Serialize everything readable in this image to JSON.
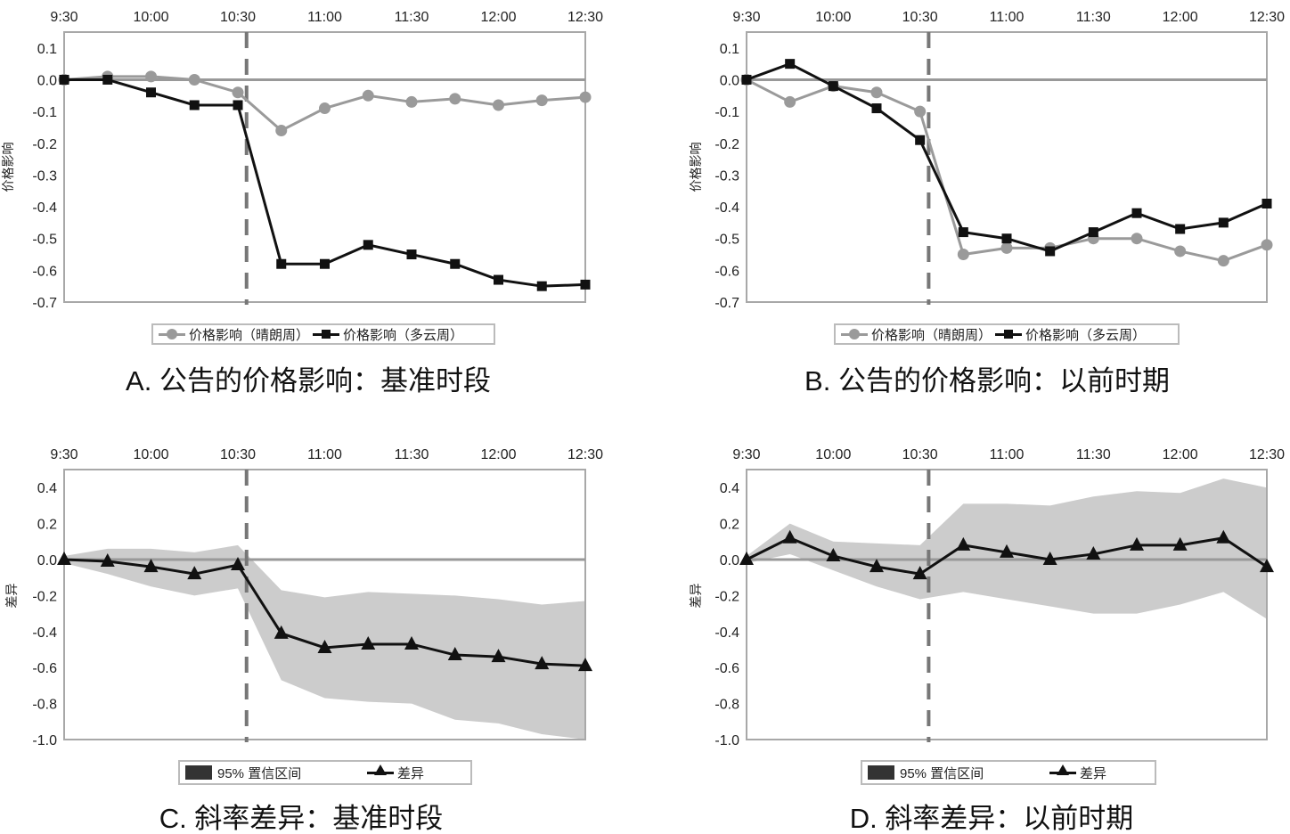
{
  "colors": {
    "sunny": "#9a9a9a",
    "cloudy": "#111111",
    "ci": "#cccccc",
    "diff": "#111111",
    "frame": "#a8a8a8",
    "event_line": "#777777"
  },
  "chart_data": [
    {
      "id": "A",
      "type": "line",
      "title": "A. 公告的价格影响：基准时段",
      "ylabel": "价格影响",
      "x": [
        "9:30",
        "9:45",
        "10:00",
        "10:15",
        "10:30",
        "10:45",
        "11:00",
        "11:15",
        "11:30",
        "11:45",
        "12:00",
        "12:15",
        "12:30"
      ],
      "xticks": [
        "9:30",
        "10:00",
        "10:30",
        "11:00",
        "11:30",
        "12:00",
        "12:30"
      ],
      "yticks": [
        "0.1",
        "0.0",
        "-0.1",
        "-0.2",
        "-0.3",
        "-0.4",
        "-0.5",
        "-0.6",
        "-0.7"
      ],
      "ylim": [
        -0.7,
        0.15
      ],
      "event_time": "10:33",
      "series": [
        {
          "name": "价格影响（晴朗周）",
          "marker": "circle",
          "values": [
            0,
            0.01,
            0.01,
            0.0,
            -0.04,
            -0.16,
            -0.09,
            -0.05,
            -0.07,
            -0.06,
            -0.08,
            -0.065,
            -0.055
          ]
        },
        {
          "name": "价格影响（多云周）",
          "marker": "square",
          "values": [
            0,
            0,
            -0.04,
            -0.08,
            -0.08,
            -0.58,
            -0.58,
            -0.52,
            -0.55,
            -0.58,
            -0.63,
            -0.65,
            -0.645
          ]
        }
      ]
    },
    {
      "id": "B",
      "type": "line",
      "title": "B. 公告的价格影响：以前时期",
      "ylabel": "价格影响",
      "x": [
        "9:30",
        "9:45",
        "10:00",
        "10:15",
        "10:30",
        "10:45",
        "11:00",
        "11:15",
        "11:30",
        "11:45",
        "12:00",
        "12:15",
        "12:30"
      ],
      "xticks": [
        "9:30",
        "10:00",
        "10:30",
        "11:00",
        "11:30",
        "12:00",
        "12:30"
      ],
      "yticks": [
        "0.1",
        "0.0",
        "-0.1",
        "-0.2",
        "-0.3",
        "-0.4",
        "-0.5",
        "-0.6",
        "-0.7"
      ],
      "ylim": [
        -0.7,
        0.15
      ],
      "event_time": "10:33",
      "series": [
        {
          "name": "价格影响（晴朗周）",
          "marker": "circle",
          "values": [
            0,
            -0.07,
            -0.02,
            -0.04,
            -0.1,
            -0.55,
            -0.53,
            -0.53,
            -0.5,
            -0.5,
            -0.54,
            -0.57,
            -0.52
          ]
        },
        {
          "name": "价格影响（多云周）",
          "marker": "square",
          "values": [
            0,
            0.05,
            -0.02,
            -0.09,
            -0.19,
            -0.48,
            -0.5,
            -0.54,
            -0.48,
            -0.42,
            -0.47,
            -0.45,
            -0.39
          ]
        }
      ]
    },
    {
      "id": "C",
      "type": "area",
      "title": "C. 斜率差异：基准时段",
      "ylabel": "差异",
      "x": [
        "9:30",
        "9:45",
        "10:00",
        "10:15",
        "10:30",
        "10:45",
        "11:00",
        "11:15",
        "11:30",
        "11:45",
        "12:00",
        "12:15",
        "12:30"
      ],
      "xticks": [
        "9:30",
        "10:00",
        "10:30",
        "11:00",
        "11:30",
        "12:00",
        "12:30"
      ],
      "yticks": [
        "0.4",
        "0.2",
        "0.0",
        "-0.2",
        "-0.4",
        "-0.6",
        "-0.8",
        "-1.0"
      ],
      "ylim": [
        -1.0,
        0.5
      ],
      "event_time": "10:33",
      "ci_label": "95% 置信区间",
      "diff_label": "差异",
      "ci_upper": [
        0.02,
        0.06,
        0.06,
        0.04,
        0.08,
        -0.17,
        -0.21,
        -0.18,
        -0.19,
        -0.2,
        -0.22,
        -0.25,
        -0.23
      ],
      "ci_lower": [
        -0.02,
        -0.08,
        -0.15,
        -0.2,
        -0.16,
        -0.67,
        -0.77,
        -0.79,
        -0.8,
        -0.89,
        -0.91,
        -0.97,
        -1.0
      ],
      "diff": [
        0,
        -0.01,
        -0.04,
        -0.08,
        -0.03,
        -0.41,
        -0.49,
        -0.47,
        -0.47,
        -0.53,
        -0.54,
        -0.58,
        -0.59
      ]
    },
    {
      "id": "D",
      "type": "area",
      "title": "D. 斜率差异：以前时期",
      "ylabel": "差异",
      "x": [
        "9:30",
        "9:45",
        "10:00",
        "10:15",
        "10:30",
        "10:45",
        "11:00",
        "11:15",
        "11:30",
        "11:45",
        "12:00",
        "12:15",
        "12:30"
      ],
      "xticks": [
        "9:30",
        "10:00",
        "10:30",
        "11:00",
        "11:30",
        "12:00",
        "12:30"
      ],
      "yticks": [
        "0.4",
        "0.2",
        "0.0",
        "-0.2",
        "-0.4",
        "-0.6",
        "-0.8",
        "-1.0"
      ],
      "ylim": [
        -1.0,
        0.5
      ],
      "event_time": "10:33",
      "ci_label": "95% 置信区间",
      "diff_label": "差异",
      "ci_upper": [
        0.02,
        0.2,
        0.1,
        0.09,
        0.08,
        0.31,
        0.31,
        0.3,
        0.35,
        0.38,
        0.37,
        0.45,
        0.4
      ],
      "ci_lower": [
        -0.02,
        0.03,
        -0.06,
        -0.15,
        -0.22,
        -0.18,
        -0.22,
        -0.26,
        -0.3,
        -0.3,
        -0.25,
        -0.18,
        -0.33
      ],
      "diff": [
        0,
        0.12,
        0.02,
        -0.04,
        -0.08,
        0.08,
        0.04,
        0.0,
        0.03,
        0.08,
        0.08,
        0.12,
        -0.04
      ]
    }
  ]
}
